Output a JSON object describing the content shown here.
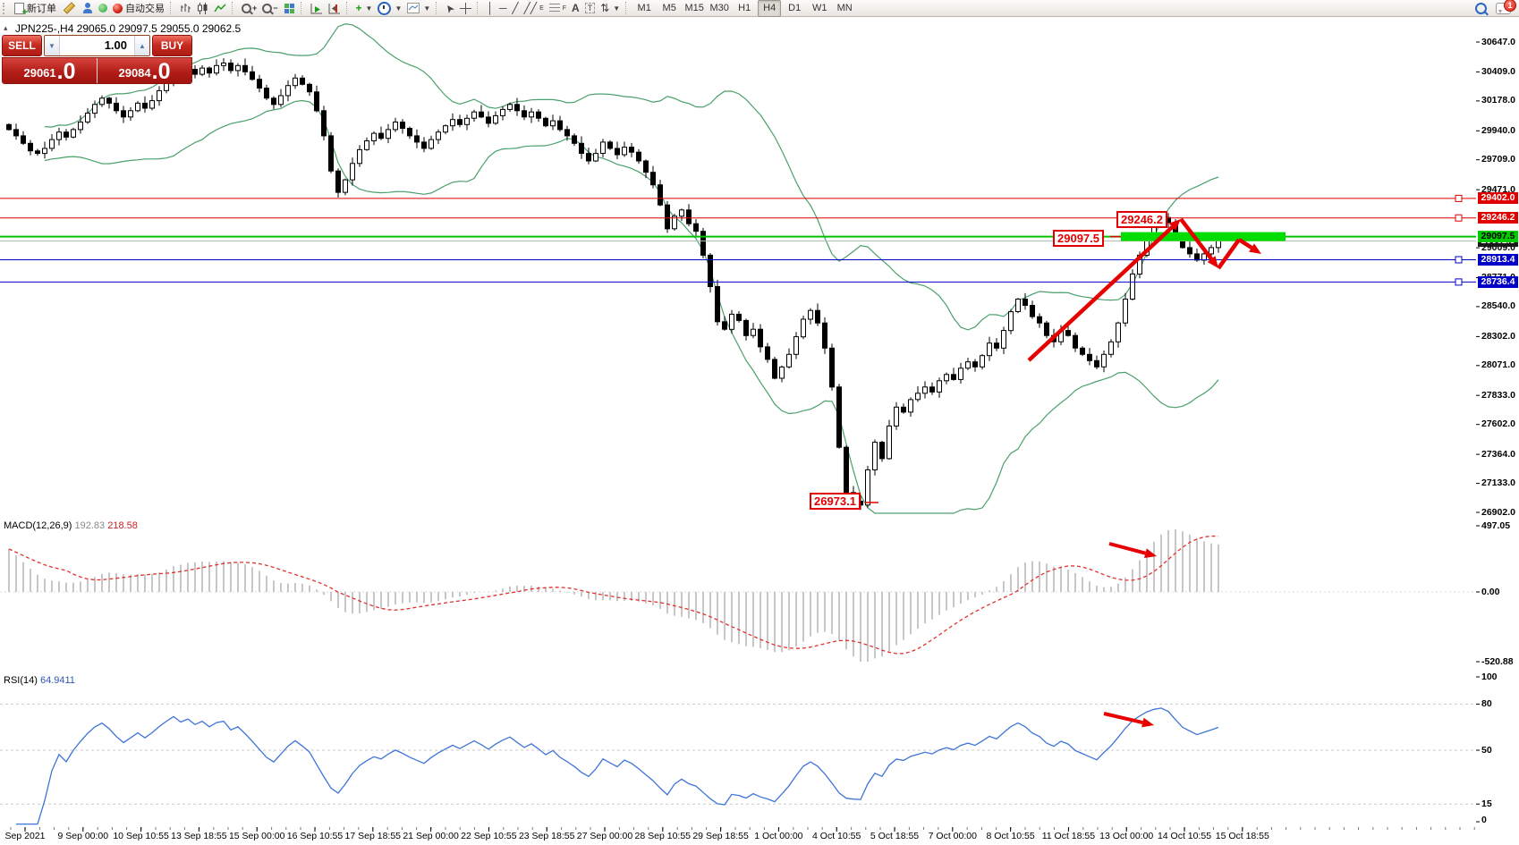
{
  "toolbar": {
    "new_order_label": "新订单",
    "autotrading_label": "自动交易",
    "timeframes": [
      "M1",
      "M5",
      "M15",
      "M30",
      "H1",
      "H4",
      "D1",
      "W1",
      "MN"
    ],
    "active_timeframe": "H4",
    "notification_count": "1"
  },
  "chart": {
    "title": "JPN225-,H4  29065.0 29097.5 29055.0 29062.5",
    "trade_panel": {
      "sell_label": "SELL",
      "buy_label": "BUY",
      "volume": "1.00",
      "sell_price": "29061",
      "sell_price_big": ".0",
      "buy_price": "29084",
      "buy_price_big": ".0"
    },
    "annotations": {
      "resistance_label": "29246.2",
      "zone_label": "29097.5",
      "low_label": "26973.1"
    },
    "y_ticks": [
      "30647.0",
      "30409.0",
      "30178.0",
      "29940.0",
      "29709.0",
      "29471.0",
      "29009.0",
      "28771.0",
      "28540.0",
      "28302.0",
      "28071.0",
      "27833.0",
      "27602.0",
      "27364.0",
      "27133.0",
      "26902.0"
    ],
    "levels": [
      {
        "price": 29402.0,
        "label": "29402.0",
        "color": "red"
      },
      {
        "price": 29246.2,
        "label": "29246.2",
        "color": "red"
      },
      {
        "price": 29062.5,
        "label": "29062.5",
        "color": "current"
      },
      {
        "price": 29097.5,
        "label": "29097.5",
        "color": "green"
      },
      {
        "price": 28913.4,
        "label": "28913.4",
        "color": "blue"
      },
      {
        "price": 28736.4,
        "label": "28736.4",
        "color": "blue"
      }
    ]
  },
  "macd": {
    "name": "MACD(12,26,9)",
    "main_value": "192.83",
    "signal_value": "218.58",
    "axis": [
      "497.05",
      "0.00",
      "-520.88"
    ]
  },
  "rsi": {
    "name": "RSI(14)",
    "value": "64.9411",
    "axis": [
      "100",
      "80",
      "50",
      "15",
      "0"
    ]
  },
  "chart_data": {
    "type": "candlestick",
    "symbol": "JPN225-",
    "timeframe": "H4",
    "ohlc_current": {
      "open": 29065.0,
      "high": 29097.5,
      "low": 29055.0,
      "close": 29062.5
    },
    "bid": 29061.0,
    "ask": 29084.0,
    "y_axis": {
      "min": 26902.0,
      "max": 30647.0
    },
    "closes": [
      29950,
      29900,
      29840,
      29780,
      29760,
      29800,
      29870,
      29930,
      29890,
      29950,
      30010,
      30080,
      30150,
      30200,
      30160,
      30100,
      30050,
      30100,
      30160,
      30120,
      30180,
      30260,
      30340,
      30420,
      30380,
      30430,
      30390,
      30440,
      30400,
      30460,
      30480,
      30420,
      30460,
      30410,
      30350,
      30280,
      30200,
      30150,
      30220,
      30300,
      30360,
      30310,
      30250,
      30100,
      29900,
      29620,
      29450,
      29550,
      29680,
      29790,
      29860,
      29920,
      29880,
      29950,
      30010,
      29960,
      29900,
      29850,
      29800,
      29870,
      29930,
      29980,
      30030,
      29990,
      30040,
      30090,
      30050,
      30000,
      30060,
      30110,
      30150,
      30100,
      30050,
      30090,
      30040,
      29980,
      30020,
      29950,
      29900,
      29840,
      29760,
      29700,
      29760,
      29850,
      29800,
      29750,
      29810,
      29770,
      29700,
      29610,
      29510,
      29350,
      29160,
      29260,
      29310,
      29200,
      29140,
      28950,
      28700,
      28420,
      28360,
      28480,
      28430,
      28310,
      28360,
      28220,
      28120,
      27970,
      28060,
      28160,
      28300,
      28440,
      28510,
      28410,
      28210,
      27900,
      27420,
      27060,
      26990,
      26960,
      27240,
      27460,
      27330,
      27590,
      27740,
      27700,
      27800,
      27850,
      27900,
      27860,
      27950,
      28000,
      27960,
      28050,
      28100,
      28060,
      28150,
      28250,
      28210,
      28350,
      28500,
      28600,
      28550,
      28460,
      28410,
      28310,
      28260,
      28350,
      28310,
      28210,
      28160,
      28110,
      28060,
      28160,
      28260,
      28410,
      28600,
      28800,
      28950,
      29100,
      29200,
      29250,
      29210,
      29110,
      29010,
      28960,
      28910,
      28960,
      29010,
      29062.5
    ],
    "indicators": {
      "bollinger": {
        "period": 20,
        "deviation": 2
      },
      "macd": {
        "fast": 12,
        "slow": 26,
        "signal": 9,
        "main": 192.83,
        "signal_value": 218.58
      },
      "rsi": {
        "period": 14,
        "value": 64.9411,
        "levels": [
          80,
          50,
          15
        ]
      }
    },
    "key_levels": {
      "resistance": [
        29402.0,
        29246.2
      ],
      "pivot_zone": 29097.5,
      "support": [
        28913.4,
        28736.4
      ],
      "swing_low": 26973.1
    },
    "time_axis": [
      "Sep 2021",
      "9 Sep 00:00",
      "10 Sep 10:55",
      "13 Sep 18:55",
      "15 Sep 00:00",
      "16 Sep 10:55",
      "17 Sep 18:55",
      "21 Sep 00:00",
      "22 Sep 10:55",
      "23 Sep 18:55",
      "27 Sep 00:00",
      "28 Sep 10:55",
      "29 Sep 18:55",
      "1 Oct 00:00",
      "4 Oct 10:55",
      "5 Oct 18:55",
      "7 Oct 00:00",
      "8 Oct 10:55",
      "11 Oct 18:55",
      "13 Oct 00:00",
      "14 Oct 10:55",
      "15 Oct 18:55"
    ]
  }
}
